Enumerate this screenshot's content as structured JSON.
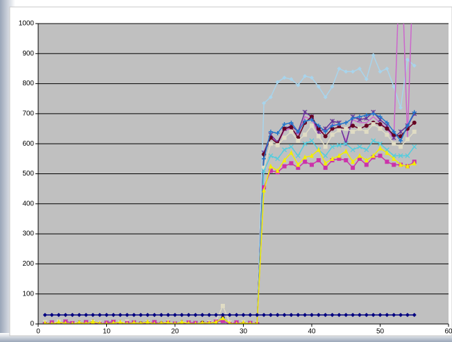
{
  "chart_data": {
    "type": "line",
    "x": [
      1,
      2,
      3,
      4,
      5,
      6,
      7,
      8,
      9,
      10,
      11,
      12,
      13,
      14,
      15,
      16,
      17,
      18,
      19,
      20,
      21,
      22,
      23,
      24,
      25,
      26,
      27,
      28,
      29,
      30,
      31,
      32,
      33,
      34,
      35,
      36,
      37,
      38,
      39,
      40,
      41,
      42,
      43,
      44,
      45,
      46,
      47,
      48,
      49,
      50,
      51,
      52,
      53,
      54,
      55
    ],
    "xlim": [
      0,
      60
    ],
    "xticks": [
      0,
      10,
      20,
      30,
      40,
      50,
      60
    ],
    "ylim": [
      0,
      1000
    ],
    "yticks": [
      0,
      100,
      200,
      300,
      400,
      500,
      600,
      700,
      800,
      900,
      1000
    ],
    "grid": true,
    "series": [
      {
        "color": "#a8d4ec",
        "marker": "diamond",
        "values": [
          0,
          5,
          0,
          8,
          3,
          0,
          6,
          2,
          0,
          4,
          7,
          0,
          3,
          5,
          0,
          2,
          6,
          0,
          4,
          1,
          0,
          5,
          3,
          0,
          2,
          8,
          10,
          0,
          5,
          0,
          3,
          0,
          735,
          755,
          805,
          820,
          815,
          795,
          825,
          820,
          790,
          755,
          790,
          850,
          840,
          840,
          850,
          815,
          895,
          840,
          850,
          790,
          720,
          880,
          860
        ]
      },
      {
        "color": "#cc66cc",
        "marker": "none",
        "values": [
          0,
          5,
          0,
          8,
          3,
          0,
          6,
          2,
          0,
          4,
          7,
          0,
          3,
          5,
          0,
          2,
          6,
          0,
          4,
          1,
          0,
          5,
          3,
          0,
          2,
          8,
          10,
          0,
          5,
          0,
          3,
          0,
          560,
          625,
          600,
          645,
          650,
          630,
          690,
          680,
          635,
          640,
          665,
          660,
          610,
          680,
          670,
          670,
          690,
          670,
          650,
          615,
          1300,
          620,
          1300
        ]
      },
      {
        "color": "#663399",
        "marker": "star",
        "values": [
          0,
          5,
          0,
          8,
          3,
          0,
          6,
          2,
          0,
          4,
          7,
          0,
          3,
          5,
          0,
          2,
          6,
          0,
          4,
          1,
          0,
          5,
          3,
          0,
          2,
          8,
          10,
          0,
          5,
          0,
          3,
          0,
          570,
          630,
          605,
          650,
          660,
          640,
          705,
          690,
          640,
          650,
          675,
          670,
          600,
          690,
          680,
          685,
          705,
          680,
          660,
          620,
          640,
          660,
          700
        ]
      },
      {
        "color": "#660022",
        "marker": "circle",
        "values": [
          3,
          0,
          6,
          2,
          0,
          5,
          1,
          8,
          2,
          0,
          3,
          6,
          0,
          4,
          2,
          7,
          0,
          3,
          5,
          0,
          6,
          2,
          0,
          4,
          3,
          6,
          20,
          2,
          0,
          4,
          1,
          2,
          565,
          620,
          600,
          650,
          655,
          620,
          670,
          690,
          650,
          625,
          650,
          655,
          650,
          660,
          650,
          660,
          670,
          665,
          650,
          630,
          625,
          650,
          670
        ]
      },
      {
        "color": "#2277cc",
        "marker": "plus",
        "values": [
          3,
          0,
          6,
          2,
          0,
          5,
          1,
          8,
          2,
          0,
          3,
          6,
          0,
          4,
          2,
          7,
          0,
          3,
          5,
          0,
          6,
          2,
          0,
          4,
          3,
          6,
          20,
          2,
          0,
          4,
          1,
          2,
          550,
          640,
          635,
          665,
          670,
          640,
          675,
          680,
          660,
          640,
          660,
          665,
          670,
          685,
          690,
          695,
          700,
          690,
          670,
          640,
          610,
          660,
          705
        ]
      },
      {
        "color": "#e0dcc4",
        "marker": "square",
        "values": [
          6,
          2,
          8,
          0,
          5,
          3,
          0,
          7,
          4,
          1,
          0,
          5,
          8,
          2,
          0,
          6,
          3,
          1,
          7,
          0,
          4,
          6,
          2,
          0,
          5,
          10,
          60,
          5,
          2,
          6,
          0,
          3,
          520,
          600,
          595,
          620,
          640,
          610,
          630,
          660,
          625,
          590,
          630,
          645,
          650,
          640,
          650,
          640,
          665,
          650,
          630,
          600,
          590,
          615,
          640
        ]
      },
      {
        "color": "#55ccdd",
        "marker": "x",
        "values": [
          0,
          5,
          0,
          8,
          3,
          0,
          6,
          2,
          0,
          4,
          7,
          0,
          3,
          5,
          0,
          2,
          6,
          0,
          4,
          1,
          0,
          5,
          3,
          0,
          2,
          8,
          10,
          0,
          5,
          0,
          3,
          0,
          510,
          560,
          550,
          580,
          590,
          560,
          600,
          610,
          580,
          560,
          590,
          595,
          600,
          580,
          590,
          580,
          610,
          600,
          580,
          560,
          560,
          560,
          590
        ]
      },
      {
        "color": "#cc33aa",
        "marker": "square",
        "values": [
          0,
          5,
          0,
          8,
          3,
          0,
          6,
          2,
          0,
          4,
          7,
          0,
          3,
          5,
          0,
          2,
          6,
          0,
          4,
          1,
          0,
          5,
          3,
          0,
          2,
          8,
          10,
          0,
          5,
          0,
          3,
          0,
          455,
          510,
          505,
          525,
          535,
          520,
          540,
          530,
          545,
          520,
          545,
          550,
          545,
          520,
          550,
          530,
          555,
          560,
          540,
          530,
          530,
          525,
          540
        ]
      },
      {
        "color": "#f2ee00",
        "marker": "triangle",
        "values": [
          3,
          0,
          6,
          2,
          0,
          5,
          1,
          8,
          2,
          0,
          3,
          6,
          0,
          4,
          2,
          7,
          0,
          3,
          5,
          0,
          6,
          2,
          0,
          4,
          3,
          6,
          20,
          2,
          0,
          4,
          1,
          2,
          445,
          525,
          510,
          545,
          570,
          530,
          555,
          560,
          580,
          535,
          550,
          560,
          575,
          540,
          560,
          545,
          560,
          585,
          570,
          550,
          530,
          525,
          535
        ]
      },
      {
        "color": "#000080",
        "marker": "diamond",
        "values": [
          30,
          30,
          30,
          30,
          30,
          30,
          30,
          30,
          30,
          30,
          30,
          30,
          30,
          30,
          30,
          30,
          30,
          30,
          30,
          30,
          30,
          30,
          30,
          30,
          30,
          30,
          30,
          30,
          30,
          30,
          30,
          30,
          30,
          30,
          30,
          30,
          30,
          30,
          30,
          30,
          30,
          30,
          30,
          30,
          30,
          30,
          30,
          30,
          30,
          30,
          30,
          30,
          30,
          30,
          30
        ]
      }
    ]
  }
}
